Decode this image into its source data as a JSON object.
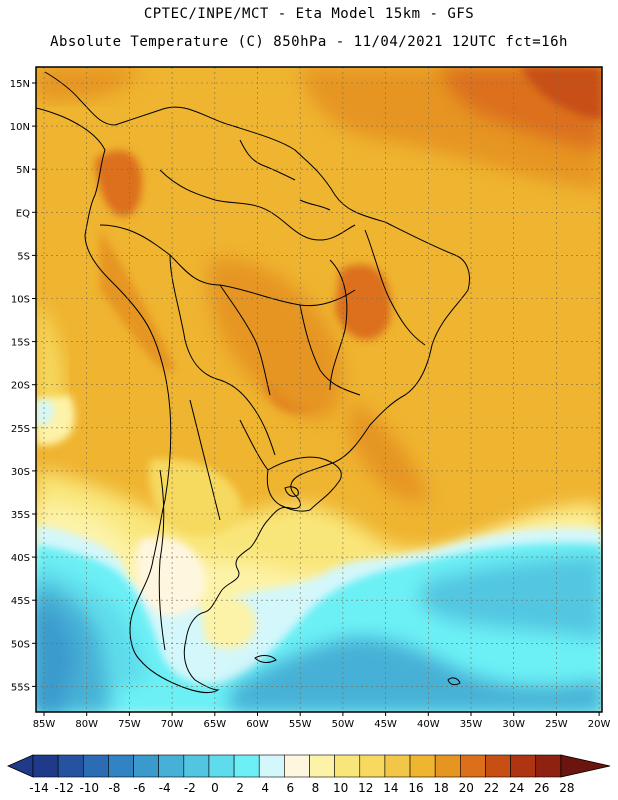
{
  "header": {
    "line1": "CPTEC/INPE/MCT -  Eta Model 15km - GFS",
    "line2": "Absolute Temperature (C) 850hPa - 11/04/2021 12UTC fct=16h"
  },
  "map": {
    "lat_labels": [
      "15N",
      "10N",
      "5N",
      "EQ",
      "5S",
      "10S",
      "15S",
      "20S",
      "25S",
      "30S",
      "35S",
      "40S",
      "45S",
      "50S",
      "55S"
    ],
    "lon_labels": [
      "85W",
      "80W",
      "75W",
      "70W",
      "65W",
      "60W",
      "55W",
      "50W",
      "45W",
      "40W",
      "35W",
      "30W",
      "25W",
      "20W"
    ],
    "lat_range": [
      16,
      -58
    ],
    "lon_range": [
      -85,
      -20
    ]
  },
  "colorbar": {
    "values": [
      "-14",
      "-12",
      "-10",
      "-8",
      "-6",
      "-4",
      "-2",
      "0",
      "2",
      "4",
      "6",
      "8",
      "10",
      "12",
      "14",
      "16",
      "18",
      "20",
      "22",
      "24",
      "26",
      "28"
    ],
    "colors": [
      "#203a8a",
      "#2553a1",
      "#2b6cb4",
      "#3283c4",
      "#3b9acc",
      "#47b0d6",
      "#52c6e1",
      "#5fdceb",
      "#6cf0f5",
      "#d4f7fb",
      "#fff6e0",
      "#fdf3a8",
      "#f9e67a",
      "#f6d95e",
      "#f2c646",
      "#efb430",
      "#e69521",
      "#dc701a",
      "#c84f14",
      "#ae3412",
      "#8f2110",
      "#6b1410"
    ]
  }
}
